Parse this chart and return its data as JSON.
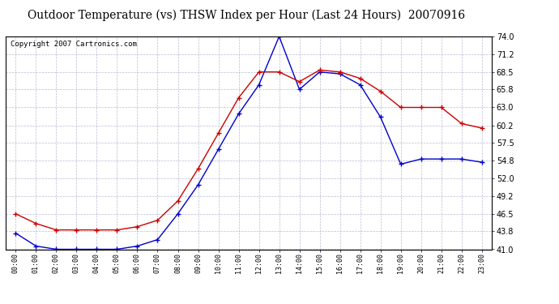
{
  "title": "Outdoor Temperature (vs) THSW Index per Hour (Last 24 Hours)  20070916",
  "copyright": "Copyright 2007 Cartronics.com",
  "x_labels": [
    "00:00",
    "01:00",
    "02:00",
    "03:00",
    "04:00",
    "05:00",
    "06:00",
    "07:00",
    "08:00",
    "09:00",
    "10:00",
    "11:00",
    "12:00",
    "13:00",
    "14:00",
    "15:00",
    "16:00",
    "17:00",
    "18:00",
    "19:00",
    "20:00",
    "21:00",
    "22:00",
    "23:00"
  ],
  "blue_data": [
    43.5,
    41.5,
    41.0,
    41.0,
    41.0,
    41.0,
    41.5,
    42.5,
    46.5,
    51.0,
    56.5,
    62.0,
    66.5,
    74.0,
    65.8,
    68.5,
    68.2,
    66.5,
    61.5,
    54.2,
    55.0,
    55.0,
    55.0,
    54.5
  ],
  "red_data": [
    46.5,
    45.0,
    44.0,
    44.0,
    44.0,
    44.0,
    44.5,
    45.5,
    48.5,
    53.5,
    59.0,
    64.5,
    68.5,
    68.5,
    67.0,
    68.8,
    68.5,
    67.5,
    65.5,
    63.0,
    63.0,
    63.0,
    60.5,
    59.8
  ],
  "ylim": [
    41.0,
    74.0
  ],
  "y_ticks": [
    41.0,
    43.8,
    46.5,
    49.2,
    52.0,
    54.8,
    57.5,
    60.2,
    63.0,
    65.8,
    68.5,
    71.2,
    74.0
  ],
  "background_color": "#ffffff",
  "plot_bg_color": "#ffffff",
  "grid_color": "#aaaacc",
  "blue_color": "#0000cc",
  "red_color": "#cc0000",
  "title_fontsize": 10,
  "copyright_fontsize": 6.5
}
